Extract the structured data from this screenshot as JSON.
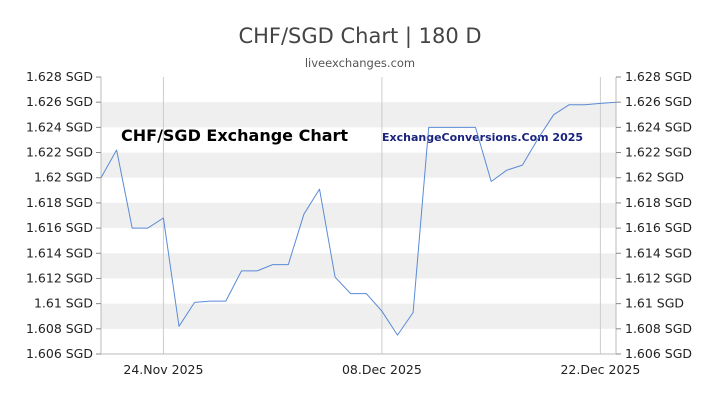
{
  "header": {
    "title": "CHF/SGD Chart | 180 D",
    "subtitle": "liveexchanges.com"
  },
  "watermark": {
    "left": "CHF/SGD Exchange Chart",
    "right": "ExchangeConversions.Com 2025"
  },
  "colors": {
    "line": "#5b8bd6",
    "band": "#efefef",
    "grid": "#cccccc",
    "axis": "#bbbbbb"
  },
  "chart_data": {
    "type": "line",
    "title": "CHF/SGD Chart | 180 D",
    "xlabel": "",
    "ylabel": "",
    "ylim": [
      1.606,
      1.628
    ],
    "y_ticks": [
      "1.606 SGD",
      "1.608 SGD",
      "1.61 SGD",
      "1.612 SGD",
      "1.614 SGD",
      "1.616 SGD",
      "1.618 SGD",
      "1.62 SGD",
      "1.622 SGD",
      "1.624 SGD",
      "1.626 SGD",
      "1.628 SGD"
    ],
    "x_ticks": [
      "24.Nov 2025",
      "08.Dec 2025",
      "22.Dec 2025"
    ],
    "x_tick_index": [
      4,
      18,
      32
    ],
    "grid": true,
    "series": [
      {
        "values": [
          1.62,
          1.6222,
          1.616,
          1.616,
          1.6168,
          1.6082,
          1.6101,
          1.6102,
          1.6102,
          1.6126,
          1.6126,
          1.6131,
          1.6131,
          1.6171,
          1.6191,
          1.6121,
          1.6108,
          1.6108,
          1.6094,
          1.6075,
          1.6093,
          1.624,
          1.624,
          1.624,
          1.624,
          1.6197,
          1.6206,
          1.621,
          1.6231,
          1.625,
          1.6258,
          1.6258,
          1.6259,
          1.626
        ]
      }
    ]
  }
}
